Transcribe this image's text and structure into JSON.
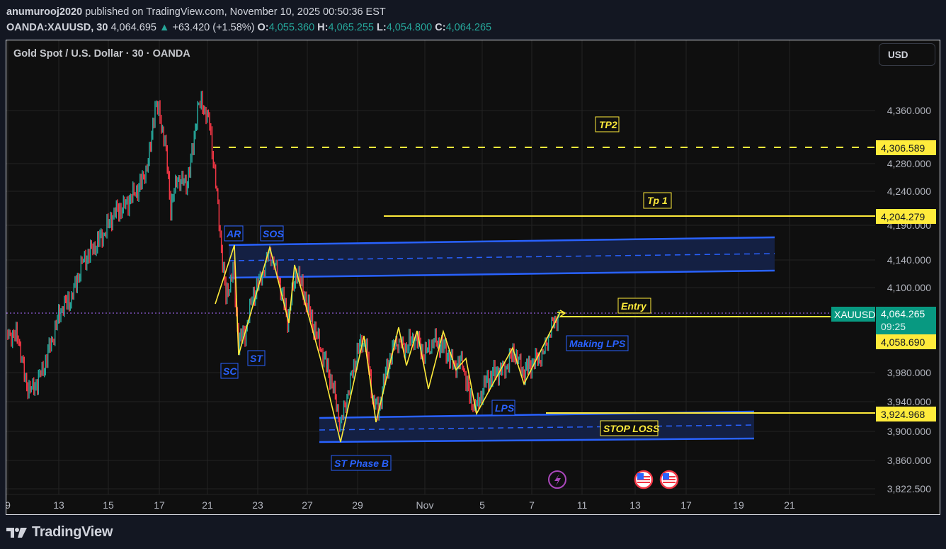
{
  "header": {
    "author": "anumurooj2020",
    "published_text": "published on TradingView.com, November 10, 2025 00:50:36 EST",
    "symbol": "OANDA:XAUUSD, 30",
    "last": "4,064.695",
    "change": "+63.420 (+1.58%)",
    "o_label": "O:",
    "o": "4,055.360",
    "h_label": "H:",
    "h": "4,065.255",
    "l_label": "L:",
    "l": "4,054.800",
    "c_label": "C:",
    "c": "4,064.265"
  },
  "chart": {
    "title": "Gold Spot / U.S. Dollar · 30 · OANDA",
    "currency": "USD",
    "price_axis": [
      "4,360.000",
      "4,280.000",
      "4,240.000",
      "4,190.000",
      "4,140.000",
      "4,100.000",
      "3,980.000",
      "3,940.000",
      "3,900.000",
      "3,860.000",
      "3,822.500"
    ],
    "time_axis": [
      "9",
      "13",
      "15",
      "17",
      "21",
      "23",
      "27",
      "29",
      "Nov",
      "5",
      "7",
      "11",
      "13",
      "17",
      "19",
      "21"
    ],
    "price_badges": {
      "tp2": "4,306.589",
      "tp1": "4,204.279",
      "symbol_tag": "XAUUSD",
      "current": "4,064.265",
      "countdown": "09:25",
      "entry": "4,058.690",
      "stop_loss": "3,924.968"
    },
    "annotations": {
      "tp2": "TP2",
      "tp1": "Tp 1",
      "entry": "Entry",
      "stop_loss": "STOP LOSS",
      "making_lps": "Making LPS",
      "lps": "LPS",
      "ar": "AR",
      "sos": "SOS",
      "sc": "SC",
      "st": "ST",
      "st_phase_b": "ST Phase B"
    },
    "colors": {
      "up": "#26a69a",
      "down": "#f23645",
      "yellow": "#ffeb3b",
      "blue": "#2962ff",
      "zone_fill": "#152247",
      "current_price": "#089981",
      "grid": "#232323"
    },
    "events": [
      "lightning-event-icon",
      "us-flag-event-icon",
      "us-flag-event-icon"
    ]
  },
  "footer": {
    "brand": "TradingView"
  }
}
